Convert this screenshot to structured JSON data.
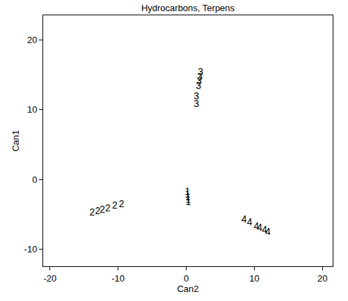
{
  "chart_data": {
    "type": "scatter",
    "title": "Hydrocarbons, Terpens",
    "x_label": "Can2",
    "y_label": "Can1",
    "marker": "text",
    "color": "#000000",
    "grid": false,
    "xlim": [
      -21,
      21.5
    ],
    "ylim": [
      -12.4,
      23.5
    ],
    "xticks": [
      -20,
      -10,
      0,
      10,
      20
    ],
    "yticks": [
      -10,
      0,
      10,
      20
    ],
    "series": [
      {
        "name": "1",
        "x": [
          0.2,
          0.2,
          0.25,
          0.3,
          0.3
        ],
        "values": [
          -1.8,
          -2.2,
          -2.6,
          -3.0,
          -3.3
        ]
      },
      {
        "name": "2",
        "x": [
          -13.8,
          -13.0,
          -12.3,
          -11.5,
          -10.5,
          -9.5
        ],
        "values": [
          -4.8,
          -4.6,
          -4.4,
          -4.2,
          -3.8,
          -3.6
        ]
      },
      {
        "name": "3",
        "x": [
          1.5,
          1.5,
          1.8,
          1.9,
          2.0,
          2.1
        ],
        "values": [
          10.7,
          11.8,
          13.3,
          14.0,
          14.6,
          15.3
        ]
      },
      {
        "name": "4",
        "x": [
          8.5,
          9.3,
          10.3,
          10.8,
          11.5,
          12.0
        ],
        "values": [
          -5.8,
          -6.2,
          -6.8,
          -7.0,
          -7.3,
          -7.6
        ]
      }
    ]
  }
}
